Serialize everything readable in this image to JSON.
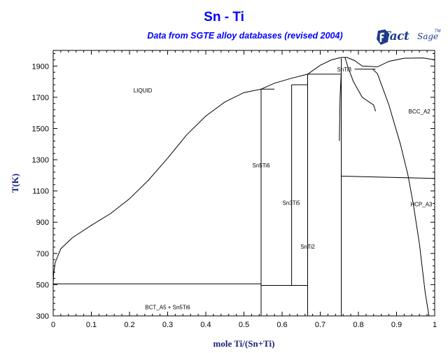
{
  "chart_data": {
    "type": "line",
    "title": "Sn - Ti",
    "subtitle": "Data from SGTE alloy databases (revised 2004)",
    "xlabel": "mole Ti/(Sn+Ti)",
    "ylabel": "T(K)",
    "xlim": [
      0,
      1
    ],
    "ylim": [
      300,
      2000
    ],
    "x_ticks": [
      0,
      0.1,
      0.2,
      0.3,
      0.4,
      0.5,
      0.6,
      0.7,
      0.8,
      0.9,
      1
    ],
    "x_tick_labels": [
      "0",
      "0.1",
      "0.2",
      "0.3",
      "0.4",
      "0.5",
      "0.6",
      "0.7",
      "0.8",
      "0.9",
      "1"
    ],
    "y_ticks": [
      300,
      500,
      700,
      900,
      1100,
      1300,
      1500,
      1700,
      1900
    ],
    "y_tick_labels": [
      "300",
      "500",
      "700",
      "900",
      "1100",
      "1300",
      "1500",
      "1700",
      "1900"
    ],
    "grid": false,
    "logo": {
      "text_main": "Fact",
      "text_secondary": "Sage",
      "text_mark": "TM"
    },
    "regions": [
      {
        "label": "LIQUID",
        "x": 0.235,
        "T": 1745
      },
      {
        "label": "BCC_A2",
        "x": 0.96,
        "T": 1610
      },
      {
        "label": "Sn5Ti6",
        "x": 0.545,
        "T": 1265
      },
      {
        "label": "SnTi3",
        "x": 0.763,
        "T": 1880
      },
      {
        "label": "Sn3Ti5",
        "x": 0.624,
        "T": 1025
      },
      {
        "label": "HCP_A3",
        "x": 0.965,
        "T": 1015
      },
      {
        "label": "SnTi2",
        "x": 0.667,
        "T": 745
      },
      {
        "label": "BCT_A5 + Sn5Ti6",
        "x": 0.3,
        "T": 355
      }
    ],
    "series": [
      {
        "values": [
          [
            0,
            505
          ],
          [
            0.001,
            560
          ],
          [
            0.005,
            640
          ],
          [
            0.02,
            730
          ],
          [
            0.05,
            800
          ],
          [
            0.1,
            880
          ],
          [
            0.15,
            955
          ],
          [
            0.2,
            1050
          ],
          [
            0.25,
            1170
          ],
          [
            0.3,
            1310
          ],
          [
            0.35,
            1460
          ],
          [
            0.4,
            1580
          ],
          [
            0.45,
            1670
          ],
          [
            0.5,
            1730
          ],
          [
            0.545,
            1752
          ]
        ]
      },
      {
        "values": [
          [
            0.545,
            1752
          ],
          [
            0.58,
            1790
          ],
          [
            0.625,
            1822
          ],
          [
            0.667,
            1848
          ],
          [
            0.7,
            1905
          ],
          [
            0.73,
            1940
          ],
          [
            0.755,
            1955
          ],
          [
            0.77,
            1955
          ],
          [
            0.79,
            1935
          ],
          [
            0.81,
            1900
          ],
          [
            0.85,
            1895
          ],
          [
            0.88,
            1930
          ],
          [
            0.92,
            1950
          ],
          [
            0.97,
            1952
          ],
          [
            1,
            1940
          ]
        ]
      },
      {
        "values": [
          [
            0.755,
            1950
          ],
          [
            0.755,
            1860
          ],
          [
            0.752,
            1700
          ],
          [
            0.75,
            1420
          ]
        ]
      },
      {
        "values": [
          [
            0.765,
            1955
          ],
          [
            0.773,
            1890
          ],
          [
            0.787,
            1800
          ],
          [
            0.81,
            1700
          ],
          [
            0.84,
            1650
          ],
          [
            0.845,
            1610
          ]
        ]
      },
      {
        "values": [
          [
            0.838,
            1880
          ],
          [
            0.85,
            1850
          ],
          [
            0.88,
            1650
          ],
          [
            0.91,
            1400
          ],
          [
            0.93,
            1200
          ],
          [
            0.945,
            1000
          ],
          [
            0.96,
            760
          ],
          [
            0.975,
            450
          ],
          [
            0.985,
            300
          ]
        ]
      },
      {
        "values": [
          [
            0.755,
            1195
          ],
          [
            1,
            1180
          ]
        ]
      },
      {
        "values": [
          [
            0.545,
            1752
          ],
          [
            0.545,
            300
          ]
        ]
      },
      {
        "values": [
          [
            0.625,
            1780
          ],
          [
            0.625,
            495
          ]
        ]
      },
      {
        "values": [
          [
            0.667,
            1848
          ],
          [
            0.667,
            300
          ]
        ]
      },
      {
        "values": [
          [
            0.755,
            1848
          ],
          [
            0.755,
            300
          ]
        ]
      },
      {
        "values": [
          [
            0,
            505
          ],
          [
            0.545,
            505
          ]
        ]
      },
      {
        "values": [
          [
            0.545,
            495
          ],
          [
            0.667,
            495
          ]
        ]
      },
      {
        "values": [
          [
            0.545,
            1752
          ],
          [
            0.58,
            1752
          ]
        ]
      },
      {
        "values": [
          [
            0.625,
            1780
          ],
          [
            0.667,
            1780
          ]
        ]
      },
      {
        "values": [
          [
            0.667,
            1848
          ],
          [
            0.755,
            1848
          ]
        ]
      },
      {
        "values": [
          [
            0.79,
            1880
          ],
          [
            0.845,
            1880
          ]
        ]
      }
    ]
  }
}
